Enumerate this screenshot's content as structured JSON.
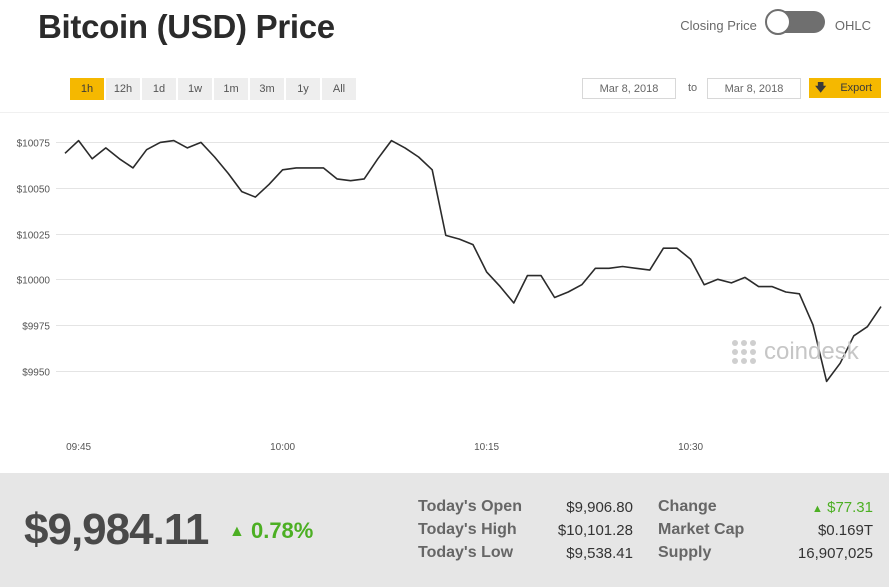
{
  "header": {
    "title": "Bitcoin (USD) Price",
    "toggle_left_label": "Closing Price",
    "toggle_right_label": "OHLC"
  },
  "ranges": [
    "1h",
    "12h",
    "1d",
    "1w",
    "1m",
    "3m",
    "1y",
    "All"
  ],
  "active_range": "1h",
  "date_from": "Mar 8, 2018",
  "date_to_label": "to",
  "date_to": "Mar 8, 2018",
  "export_label": "Export",
  "watermark": "coindesk",
  "colors": {
    "accent": "#f5b800",
    "line": "#2b2b2b",
    "up": "#4caf23",
    "footer_bg": "#e6e6e6"
  },
  "chart_data": {
    "type": "line",
    "xlabel": "",
    "ylabel": "",
    "x_ticks": [
      "09:45",
      "10:00",
      "10:15",
      "10:30"
    ],
    "x_tick_minutes": [
      0,
      15,
      30,
      45
    ],
    "y_ticks": [
      "$10075",
      "$10050",
      "$10025",
      "$10000",
      "$9975",
      "$9950"
    ],
    "y_tick_values": [
      10075,
      10050,
      10025,
      10000,
      9975,
      9950
    ],
    "ylim": [
      9930,
      10090
    ],
    "xlim_minutes": [
      -1,
      59
    ],
    "grid": true,
    "series": [
      {
        "x_minutes": [
          -1,
          0,
          1,
          2,
          3,
          4,
          5,
          6,
          7,
          8,
          9,
          10,
          11,
          12,
          13,
          14,
          15,
          16,
          17,
          18,
          19,
          20,
          21,
          22,
          23,
          24,
          25,
          26,
          27,
          28,
          29,
          30,
          31,
          32,
          33,
          34,
          35,
          36,
          37,
          38,
          39,
          40,
          41,
          42,
          43,
          44,
          45,
          46,
          47,
          48,
          49,
          50,
          51,
          52,
          53,
          54,
          55,
          56,
          57,
          58,
          59
        ],
        "values": [
          10069,
          10076,
          10066,
          10072,
          10066,
          10061,
          10071,
          10075,
          10076,
          10072,
          10075,
          10067,
          10058,
          10048,
          10045,
          10052,
          10060,
          10061,
          10061,
          10061,
          10055,
          10054,
          10055,
          10066,
          10076,
          10072,
          10067,
          10060,
          10024,
          10022,
          10019,
          10004,
          9996,
          9987,
          10002,
          10002,
          9990,
          9993,
          9997,
          10006,
          10006,
          10007,
          10006,
          10005,
          10017,
          10017,
          10011,
          9997,
          10000,
          9998,
          10001,
          9996,
          9996,
          9993,
          9992,
          9975,
          9944,
          9954,
          9969,
          9974,
          9985
        ]
      }
    ]
  },
  "footer": {
    "price": "$9,984.11",
    "change_pct": "0.78%",
    "stats_left": [
      {
        "label": "Today's Open",
        "value": "$9,906.80"
      },
      {
        "label": "Today's High",
        "value": "$10,101.28"
      },
      {
        "label": "Today's Low",
        "value": "$9,538.41"
      }
    ],
    "stats_right": [
      {
        "label": "Change",
        "value": "$77.31"
      },
      {
        "label": "Market Cap",
        "value": "$0.169T"
      },
      {
        "label": "Supply",
        "value": "16,907,025"
      }
    ]
  }
}
